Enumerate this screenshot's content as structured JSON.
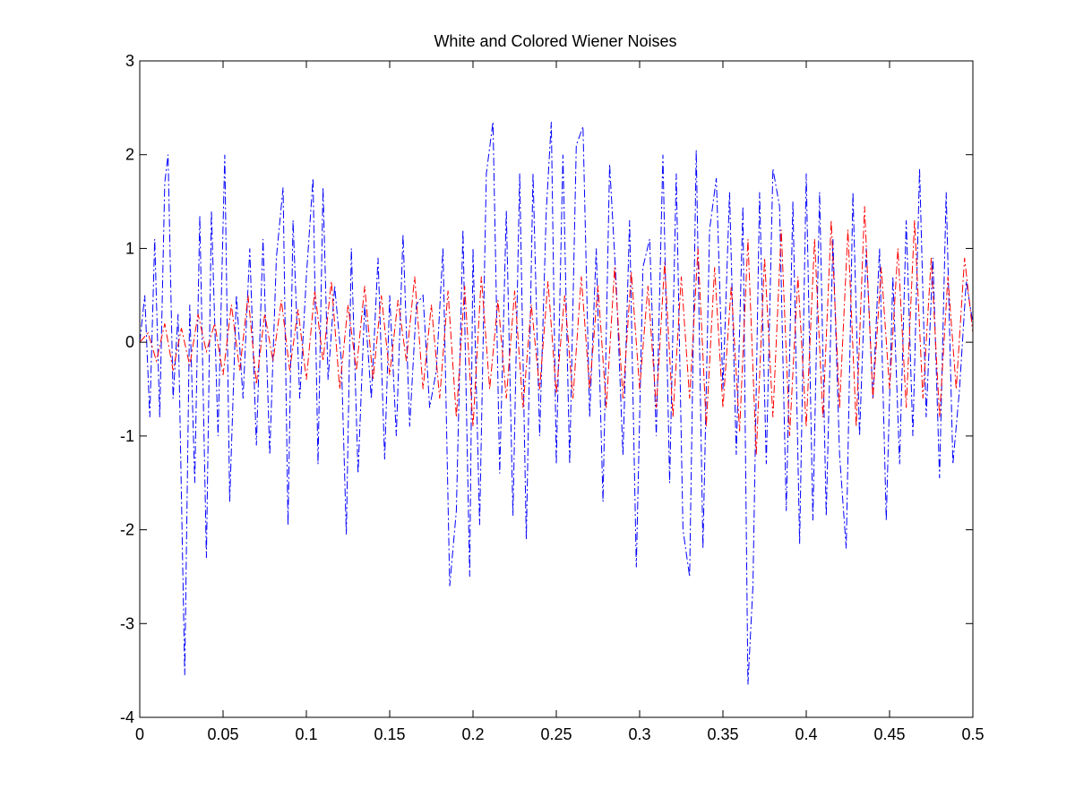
{
  "chart_data": {
    "type": "line",
    "title": "White and Colored Wiener Noises",
    "xlabel": "",
    "ylabel": "",
    "xlim": [
      0,
      0.5
    ],
    "ylim": [
      -4,
      3
    ],
    "xticks": [
      0,
      0.05,
      0.1,
      0.15,
      0.2,
      0.25,
      0.3,
      0.35,
      0.4,
      0.45,
      0.5
    ],
    "xtick_labels": [
      "0",
      "0.05",
      "0.1",
      "0.15",
      "0.2",
      "0.25",
      "0.3",
      "0.35",
      "0.4",
      "0.45",
      "0.5"
    ],
    "yticks": [
      -4,
      -3,
      -2,
      -1,
      0,
      1,
      2,
      3
    ],
    "ytick_labels": [
      "-4",
      "-3",
      "-2",
      "-1",
      "0",
      "1",
      "2",
      "3"
    ],
    "grid": false,
    "legend": "none",
    "line_style": "dash-dot",
    "series": [
      {
        "color": "#0000ff",
        "x": [
          0,
          0.003,
          0.006,
          0.009,
          0.012,
          0.015,
          0.017,
          0.02,
          0.023,
          0.027,
          0.03,
          0.033,
          0.036,
          0.04,
          0.043,
          0.047,
          0.051,
          0.054,
          0.058,
          0.062,
          0.066,
          0.07,
          0.074,
          0.078,
          0.082,
          0.086,
          0.089,
          0.092,
          0.096,
          0.1,
          0.104,
          0.107,
          0.11,
          0.113,
          0.117,
          0.121,
          0.124,
          0.127,
          0.131,
          0.135,
          0.139,
          0.143,
          0.147,
          0.15,
          0.154,
          0.158,
          0.162,
          0.166,
          0.17,
          0.174,
          0.178,
          0.182,
          0.186,
          0.19,
          0.194,
          0.198,
          0.2,
          0.204,
          0.208,
          0.212,
          0.216,
          0.22,
          0.224,
          0.228,
          0.232,
          0.236,
          0.24,
          0.244,
          0.247,
          0.25,
          0.254,
          0.258,
          0.262,
          0.266,
          0.27,
          0.274,
          0.278,
          0.282,
          0.286,
          0.29,
          0.294,
          0.298,
          0.302,
          0.306,
          0.31,
          0.314,
          0.318,
          0.322,
          0.326,
          0.33,
          0.334,
          0.338,
          0.342,
          0.346,
          0.35,
          0.354,
          0.358,
          0.362,
          0.365,
          0.368,
          0.372,
          0.376,
          0.38,
          0.384,
          0.388,
          0.392,
          0.396,
          0.4,
          0.404,
          0.408,
          0.412,
          0.416,
          0.42,
          0.424,
          0.428,
          0.432,
          0.436,
          0.44,
          0.444,
          0.448,
          0.452,
          0.456,
          0.46,
          0.464,
          0.468,
          0.472,
          0.476,
          0.48,
          0.484,
          0.488,
          0.492,
          0.496,
          0.5
        ],
        "y": [
          0,
          0.5,
          -0.8,
          1.1,
          -0.8,
          1.7,
          2.0,
          -0.6,
          0.3,
          -3.55,
          0.4,
          -1.5,
          1.35,
          -2.3,
          1.4,
          -1.0,
          2.0,
          -1.7,
          0.5,
          -0.6,
          1.0,
          -1.1,
          1.1,
          -1.2,
          0.9,
          1.65,
          -1.95,
          1.3,
          -0.6,
          0.7,
          1.75,
          -1.3,
          1.65,
          -0.4,
          0.6,
          -0.2,
          -2.05,
          1.0,
          -1.4,
          0.4,
          -0.6,
          0.9,
          -1.25,
          0.5,
          -1.0,
          1.15,
          -0.9,
          0.4,
          0.5,
          -0.7,
          -0.3,
          1.0,
          -2.6,
          -1.8,
          1.2,
          -2.5,
          1.0,
          -1.95,
          1.8,
          2.35,
          -1.4,
          1.4,
          -1.85,
          1.8,
          -2.1,
          1.8,
          -1.0,
          1.4,
          2.35,
          -1.3,
          2.0,
          -1.3,
          2.1,
          2.3,
          -0.8,
          1.0,
          -1.7,
          1.9,
          0.6,
          -1.2,
          1.3,
          -2.4,
          0.8,
          1.1,
          -1.0,
          2.0,
          -1.5,
          1.8,
          -2.0,
          -2.5,
          2.05,
          -2.2,
          1.2,
          1.75,
          -0.5,
          1.6,
          -1.2,
          1.45,
          -3.65,
          -2.6,
          1.6,
          -1.3,
          1.85,
          1.45,
          -1.8,
          1.5,
          -2.15,
          1.8,
          -1.9,
          1.6,
          -1.85,
          1.1,
          -1.2,
          -2.2,
          1.6,
          -1.0,
          1.0,
          -0.6,
          1.0,
          -1.9,
          0.7,
          -1.3,
          1.3,
          -1.0,
          1.85,
          -0.8,
          0.9,
          -1.45,
          1.6,
          -1.3,
          -0.5,
          0.65,
          0.2
        ]
      },
      {
        "color": "#ff0000",
        "x": [
          0,
          0.005,
          0.01,
          0.015,
          0.02,
          0.025,
          0.03,
          0.035,
          0.04,
          0.045,
          0.05,
          0.055,
          0.06,
          0.065,
          0.07,
          0.075,
          0.08,
          0.085,
          0.09,
          0.095,
          0.1,
          0.105,
          0.11,
          0.115,
          0.12,
          0.125,
          0.13,
          0.135,
          0.14,
          0.145,
          0.15,
          0.155,
          0.16,
          0.165,
          0.17,
          0.175,
          0.18,
          0.185,
          0.19,
          0.195,
          0.2,
          0.205,
          0.21,
          0.215,
          0.22,
          0.225,
          0.23,
          0.235,
          0.24,
          0.245,
          0.25,
          0.255,
          0.26,
          0.265,
          0.27,
          0.275,
          0.28,
          0.285,
          0.29,
          0.295,
          0.3,
          0.305,
          0.31,
          0.315,
          0.32,
          0.325,
          0.33,
          0.335,
          0.34,
          0.345,
          0.35,
          0.355,
          0.36,
          0.365,
          0.37,
          0.375,
          0.38,
          0.385,
          0.39,
          0.395,
          0.4,
          0.405,
          0.41,
          0.415,
          0.42,
          0.425,
          0.43,
          0.435,
          0.44,
          0.445,
          0.45,
          0.455,
          0.46,
          0.465,
          0.47,
          0.475,
          0.48,
          0.485,
          0.49,
          0.495,
          0.5
        ],
        "y": [
          0,
          0.1,
          -0.2,
          0.2,
          -0.3,
          0.15,
          -0.25,
          0.3,
          -0.1,
          0.2,
          -0.35,
          0.4,
          -0.3,
          0.5,
          -0.45,
          0.3,
          -0.2,
          0.45,
          -0.3,
          0.35,
          -0.4,
          0.55,
          -0.2,
          0.65,
          -0.5,
          0.4,
          -0.3,
          0.6,
          -0.4,
          0.5,
          -0.35,
          0.45,
          -0.2,
          0.7,
          -0.5,
          0.4,
          -0.6,
          0.55,
          -0.8,
          0.6,
          -0.9,
          0.7,
          -0.5,
          0.45,
          -0.6,
          0.55,
          -0.7,
          0.4,
          -0.5,
          0.65,
          -0.55,
          0.5,
          -0.6,
          0.7,
          -0.5,
          0.6,
          -0.7,
          0.8,
          -0.6,
          0.75,
          -0.5,
          0.6,
          -0.7,
          0.85,
          -0.8,
          0.7,
          -0.6,
          1.0,
          -0.9,
          0.8,
          -0.7,
          0.6,
          -0.95,
          1.1,
          -1.2,
          0.9,
          -0.8,
          1.2,
          -1.0,
          0.7,
          -0.9,
          1.1,
          -0.8,
          1.3,
          -0.7,
          1.2,
          -0.9,
          1.45,
          -0.6,
          0.8,
          -0.5,
          1.0,
          -0.7,
          1.3,
          -0.6,
          0.9,
          -0.8,
          0.7,
          -0.5,
          0.9,
          0.1
        ]
      }
    ]
  }
}
